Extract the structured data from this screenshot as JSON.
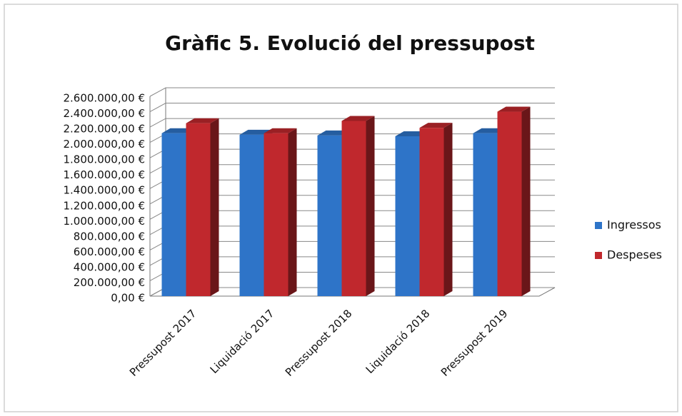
{
  "chart_data": {
    "type": "bar3d",
    "title": "Gràfic 5. Evolució del pressupost",
    "categories": [
      "Pressupost 2017",
      "Liquidació 2017",
      "Pressupost 2018",
      "Liquidació 2018",
      "Pressupost 2019"
    ],
    "series": [
      {
        "name": "Ingressos",
        "color": "#2e74c8",
        "values": [
          2120000,
          2100000,
          2090000,
          2080000,
          2120000
        ]
      },
      {
        "name": "Despeses",
        "color": "#c0282d",
        "values": [
          2250000,
          2120000,
          2280000,
          2190000,
          2400000
        ]
      }
    ],
    "ylim": [
      0,
      2600000
    ],
    "yticks": [
      {
        "value": 0,
        "label": "0,00 €"
      },
      {
        "value": 200000,
        "label": "200.000,00 €"
      },
      {
        "value": 400000,
        "label": "400.000,00 €"
      },
      {
        "value": 600000,
        "label": "600.000,00 €"
      },
      {
        "value": 800000,
        "label": "800.000,00 €"
      },
      {
        "value": 1000000,
        "label": "1.000.000,00 €"
      },
      {
        "value": 1200000,
        "label": "1.200.000,00 €"
      },
      {
        "value": 1400000,
        "label": "1.400.000,00 €"
      },
      {
        "value": 1600000,
        "label": "1.600.000,00 €"
      },
      {
        "value": 1800000,
        "label": "1.800.000,00 €"
      },
      {
        "value": 2000000,
        "label": "2.000.000,00 €"
      },
      {
        "value": 2200000,
        "label": "2.200.000,00 €"
      },
      {
        "value": 2400000,
        "label": "2.400.000,00 €"
      },
      {
        "value": 2600000,
        "label": "2.600.000,00 €"
      }
    ],
    "grid": true,
    "legend": "right"
  }
}
